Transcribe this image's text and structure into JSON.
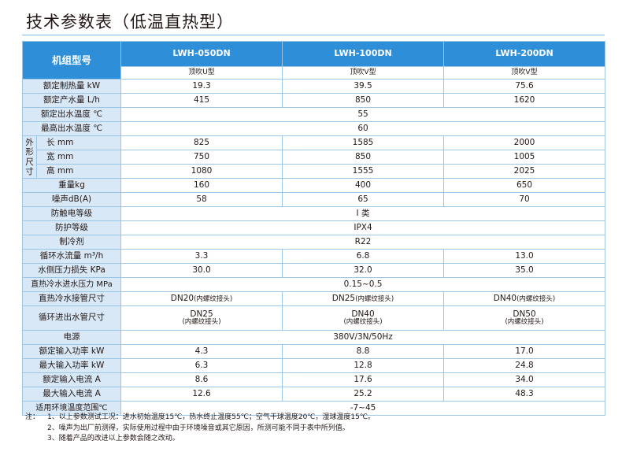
{
  "title": "技术参数表（低温直热型）",
  "header": {
    "corner": "机组型号",
    "models": [
      "LWH-050DN",
      "LWH-100DN",
      "LWH-200DN"
    ],
    "subtypes": [
      "顶吹U型",
      "顶吹V型",
      "顶吹V型"
    ]
  },
  "rows": {
    "rated_heat": {
      "label": "额定制热量 kW",
      "values": [
        "19.3",
        "39.5",
        "75.6"
      ]
    },
    "rated_water": {
      "label": "额定产水量 L/h",
      "values": [
        "415",
        "850",
        "1620"
      ]
    },
    "rated_outlet_temp": {
      "label": "额定出水温度 ℃",
      "value": "55"
    },
    "max_outlet_temp": {
      "label": "最高出水温度 ℃",
      "value": "60"
    },
    "dims": {
      "group_label": "外\n形\n尺\n寸",
      "length": {
        "label": "长 mm",
        "values": [
          "825",
          "1585",
          "2000"
        ]
      },
      "width": {
        "label": "宽 mm",
        "values": [
          "750",
          "850",
          "1005"
        ]
      },
      "height": {
        "label": "高 mm",
        "values": [
          "1080",
          "1555",
          "2025"
        ]
      }
    },
    "weight": {
      "label": "重量kg",
      "values": [
        "160",
        "400",
        "650"
      ]
    },
    "noise": {
      "label": "噪声dB(A)",
      "values": [
        "58",
        "65",
        "70"
      ]
    },
    "shock_class": {
      "label": "防触电等级",
      "value": "I 类"
    },
    "protect_class": {
      "label": "防护等级",
      "value": "IPX4"
    },
    "refrigerant": {
      "label": "制冷剂",
      "value": "R22"
    },
    "flow": {
      "label": "循环水流量 m³/h",
      "values": [
        "3.3",
        "6.8",
        "13.0"
      ]
    },
    "pressure_loss": {
      "label": "水侧压力损失  KPa",
      "values": [
        "30.0",
        "32.0",
        "35.0"
      ]
    },
    "inlet_pressure": {
      "label": "直热冷水进水压力 MPa",
      "value": "0.15~0.5"
    },
    "inlet_pipe": {
      "label": "直热冷水接管尺寸",
      "values": [
        {
          "main": "DN20",
          "note": "(内螺纹接头)"
        },
        {
          "main": "DN25",
          "note": "(内螺纹接头)"
        },
        {
          "main": "DN40",
          "note": "(内螺纹接头)"
        }
      ]
    },
    "circ_pipe": {
      "label": "循环进出水管尺寸",
      "values": [
        {
          "main": "DN25",
          "note": "(内螺纹接头)"
        },
        {
          "main": "DN40",
          "note": "(内螺纹接头)"
        },
        {
          "main": "DN50",
          "note": "(内螺纹接头)"
        }
      ]
    },
    "power": {
      "label": "电源",
      "value": "380V/3N/50Hz"
    },
    "rated_input": {
      "label": "额定输入功率  kW",
      "values": [
        "4.3",
        "8.8",
        "17.0"
      ]
    },
    "max_input": {
      "label": "最大输入功率  kW",
      "values": [
        "6.3",
        "12.8",
        "24.8"
      ]
    },
    "rated_current": {
      "label": "额定输入电流 A",
      "values": [
        "8.6",
        "17.6",
        "34.0"
      ]
    },
    "max_current": {
      "label": "最大输入电流 A",
      "values": [
        "12.6",
        "25.2",
        "48.3"
      ]
    },
    "ambient_range": {
      "label": "适用环境温度范围℃",
      "value": "-7~45"
    }
  },
  "notes": {
    "tag": "注：",
    "items": [
      "1、以上参数测试工况：进水初始温度15℃，热水终止温度55℃；空气干球温度20℃，湿球温度15℃。",
      "2、噪声为出厂前测得，实际使用过程中由于环境噪音或其它原因，所测可能不同于表中所列值。",
      "3、随着产品的改进以上参数会随之改动。"
    ]
  },
  "colors": {
    "header_bg": "#2e8fd8",
    "label_bg": "#d8e8f7",
    "border": "#9cc6e8"
  }
}
